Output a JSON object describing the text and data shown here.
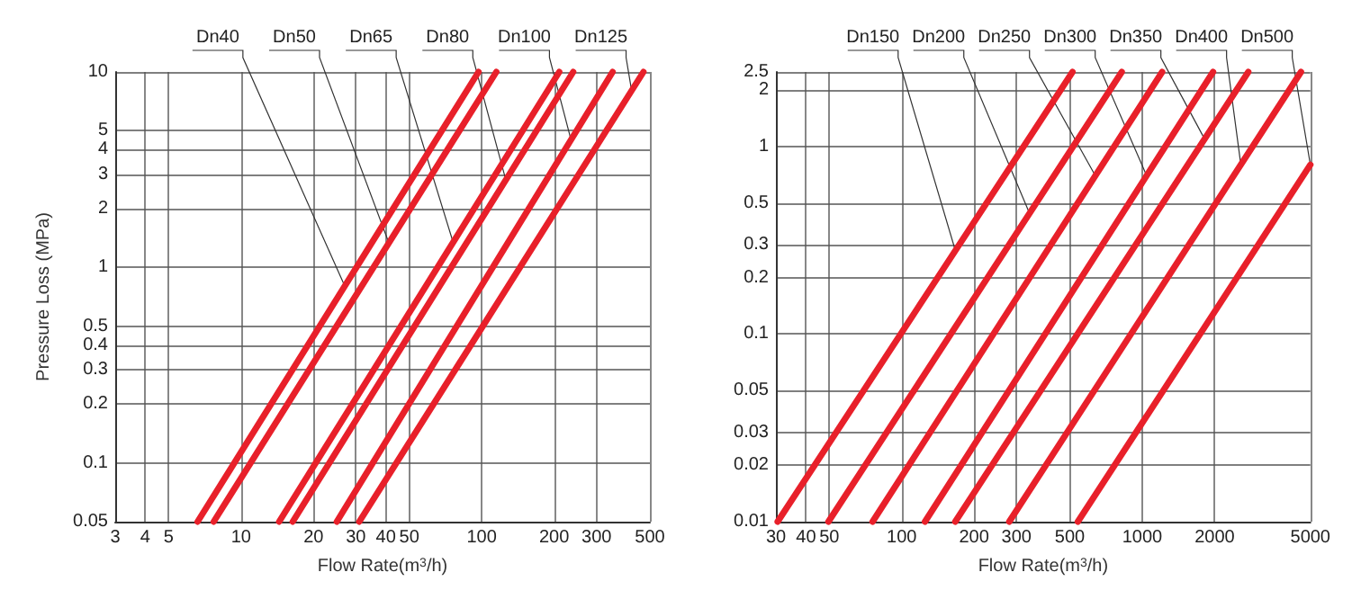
{
  "chart_data": [
    {
      "type": "line",
      "xlabel": "Flow Rate(m$^{3}$/h)",
      "ylabel": "Pressure Loss (MPa)",
      "log": "xy",
      "grid": true,
      "marker": "none",
      "line_style": "solid",
      "xlim": [
        3,
        500
      ],
      "ylim": [
        0.05,
        10
      ],
      "xticks": [
        3,
        4,
        5,
        10,
        20,
        30,
        40,
        50,
        100,
        200,
        300,
        500
      ],
      "yticks": [
        0.05,
        0.1,
        0.2,
        0.3,
        0.4,
        0.5,
        1,
        2,
        3,
        4,
        5,
        10
      ],
      "series": [
        {
          "color": "#e8202a",
          "x": [
            6.6,
            97
          ],
          "values": [
            0.05,
            10
          ]
        },
        {
          "color": "#e8202a",
          "x": [
            7.7,
            115
          ],
          "values": [
            0.05,
            10
          ]
        },
        {
          "color": "#e8202a",
          "x": [
            14.4,
            210
          ],
          "values": [
            0.05,
            10
          ]
        },
        {
          "color": "#e8202a",
          "x": [
            16.4,
            240
          ],
          "values": [
            0.05,
            10
          ]
        },
        {
          "color": "#e8202a",
          "x": [
            25,
            350
          ],
          "values": [
            0.05,
            10
          ]
        },
        {
          "color": "#e8202a",
          "x": [
            31,
            470
          ],
          "values": [
            0.05,
            10
          ]
        }
      ],
      "annotations": [
        {
          "text": "Dn40",
          "x": 27,
          "y": 0.8
        },
        {
          "text": "Dn50",
          "x": 41,
          "y": 1.35
        },
        {
          "text": "Dn65",
          "x": 76,
          "y": 1.35
        },
        {
          "text": "Dn80",
          "x": 126,
          "y": 2.8
        },
        {
          "text": "Dn100",
          "x": 235,
          "y": 4.5
        },
        {
          "text": "Dn125",
          "x": 420,
          "y": 8
        }
      ]
    },
    {
      "type": "line",
      "xlabel": "Flow Rate(m$^{3}$/h)",
      "log": "xy",
      "grid": true,
      "marker": "none",
      "line_style": "solid",
      "xlim": [
        30,
        5000
      ],
      "ylim": [
        0.01,
        2.5
      ],
      "xticks": [
        30,
        40,
        50,
        100,
        200,
        300,
        500,
        1000,
        2000,
        5000
      ],
      "yticks": [
        0.01,
        0.02,
        0.03,
        0.05,
        0.1,
        0.2,
        0.3,
        0.5,
        1,
        2,
        2.5
      ],
      "series": [
        {
          "color": "#e8202a",
          "x": [
            30.5,
            513
          ],
          "values": [
            0.01,
            2.5
          ]
        },
        {
          "color": "#e8202a",
          "x": [
            49.6,
            822
          ],
          "values": [
            0.01,
            2.5
          ]
        },
        {
          "color": "#e8202a",
          "x": [
            75.7,
            1210
          ],
          "values": [
            0.01,
            2.5
          ]
        },
        {
          "color": "#e8202a",
          "x": [
            125,
            1970
          ],
          "values": [
            0.01,
            2.5
          ]
        },
        {
          "color": "#e8202a",
          "x": [
            167,
            2760
          ],
          "values": [
            0.01,
            2.5
          ]
        },
        {
          "color": "#e8202a",
          "x": [
            280,
            4570
          ],
          "values": [
            0.01,
            2.5
          ]
        },
        {
          "color": "#e8202a",
          "x": [
            540,
            5000
          ],
          "values": [
            0.01,
            0.8
          ]
        }
      ],
      "annotations": [
        {
          "text": "Dn150",
          "x": 167,
          "y": 0.28
        },
        {
          "text": "Dn200",
          "x": 340,
          "y": 0.44
        },
        {
          "text": "Dn250",
          "x": 638,
          "y": 0.7
        },
        {
          "text": "Dn300",
          "x": 1043,
          "y": 0.7
        },
        {
          "text": "Dn350",
          "x": 1815,
          "y": 1.1
        },
        {
          "text": "Dn400",
          "x": 2570,
          "y": 0.8
        },
        {
          "text": "Dn500",
          "x": 5000,
          "y": 0.8
        }
      ]
    }
  ]
}
